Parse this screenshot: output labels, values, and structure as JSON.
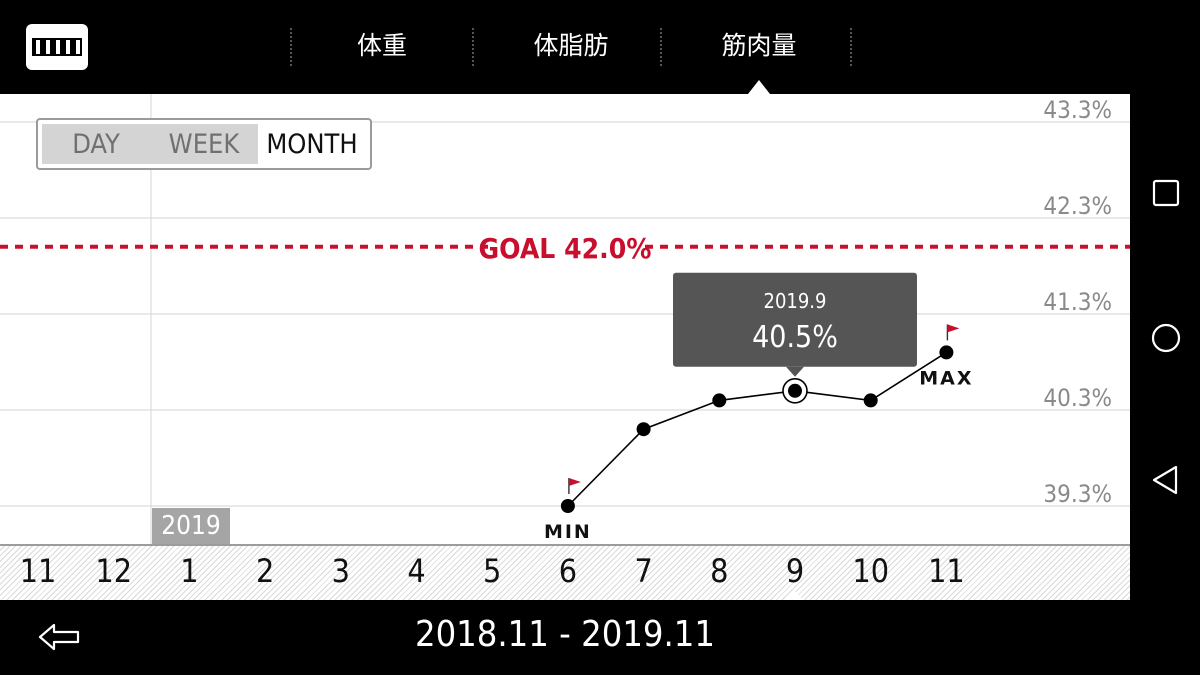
{
  "header": {
    "tabs": [
      {
        "label": "体重"
      },
      {
        "label": "体脂肪"
      },
      {
        "label": "筋肉量"
      }
    ],
    "active_tab": "筋肉量"
  },
  "period_selector": {
    "options": [
      "DAY",
      "WEEK",
      "MONTH"
    ],
    "selected": "MONTH"
  },
  "chart_data": {
    "type": "line",
    "y_tick_labels": [
      "43.3%",
      "42.3%",
      "41.3%",
      "40.3%",
      "39.3%"
    ],
    "y_ticks": [
      43.3,
      42.3,
      41.3,
      40.3,
      39.3
    ],
    "ylim": [
      39.1,
      43.6
    ],
    "x_tick_labels": [
      "11",
      "12",
      "1",
      "2",
      "3",
      "4",
      "5",
      "6",
      "7",
      "8",
      "9",
      "10",
      "11"
    ],
    "year_label": "2019",
    "series": [
      {
        "x": [
          "2019.6",
          "2019.7",
          "2019.8",
          "2019.9",
          "2019.10",
          "2019.11"
        ],
        "x_index": [
          7,
          8,
          9,
          10,
          11,
          12
        ],
        "values": [
          39.3,
          40.1,
          40.4,
          40.5,
          40.4,
          40.9
        ],
        "color": "#000000"
      }
    ],
    "goal": {
      "label": "GOAL 42.0%",
      "value": 42.0,
      "color": "#c8102e"
    },
    "min_label": "MIN",
    "max_label": "MAX",
    "tooltip": {
      "date": "2019.9",
      "value": "40.5%"
    },
    "selected_index": 10,
    "grid": true
  },
  "footer": {
    "date_range": "2018.11 - 2019.11"
  },
  "colors": {
    "accent_red": "#c8102e",
    "background": "#000000",
    "chart_bg": "#ffffff"
  },
  "icons": {
    "logo": "tanita-logo-icon",
    "back": "back-arrow-icon",
    "recent": "square-icon",
    "home": "circle-icon",
    "nav_back": "triangle-back-icon"
  }
}
